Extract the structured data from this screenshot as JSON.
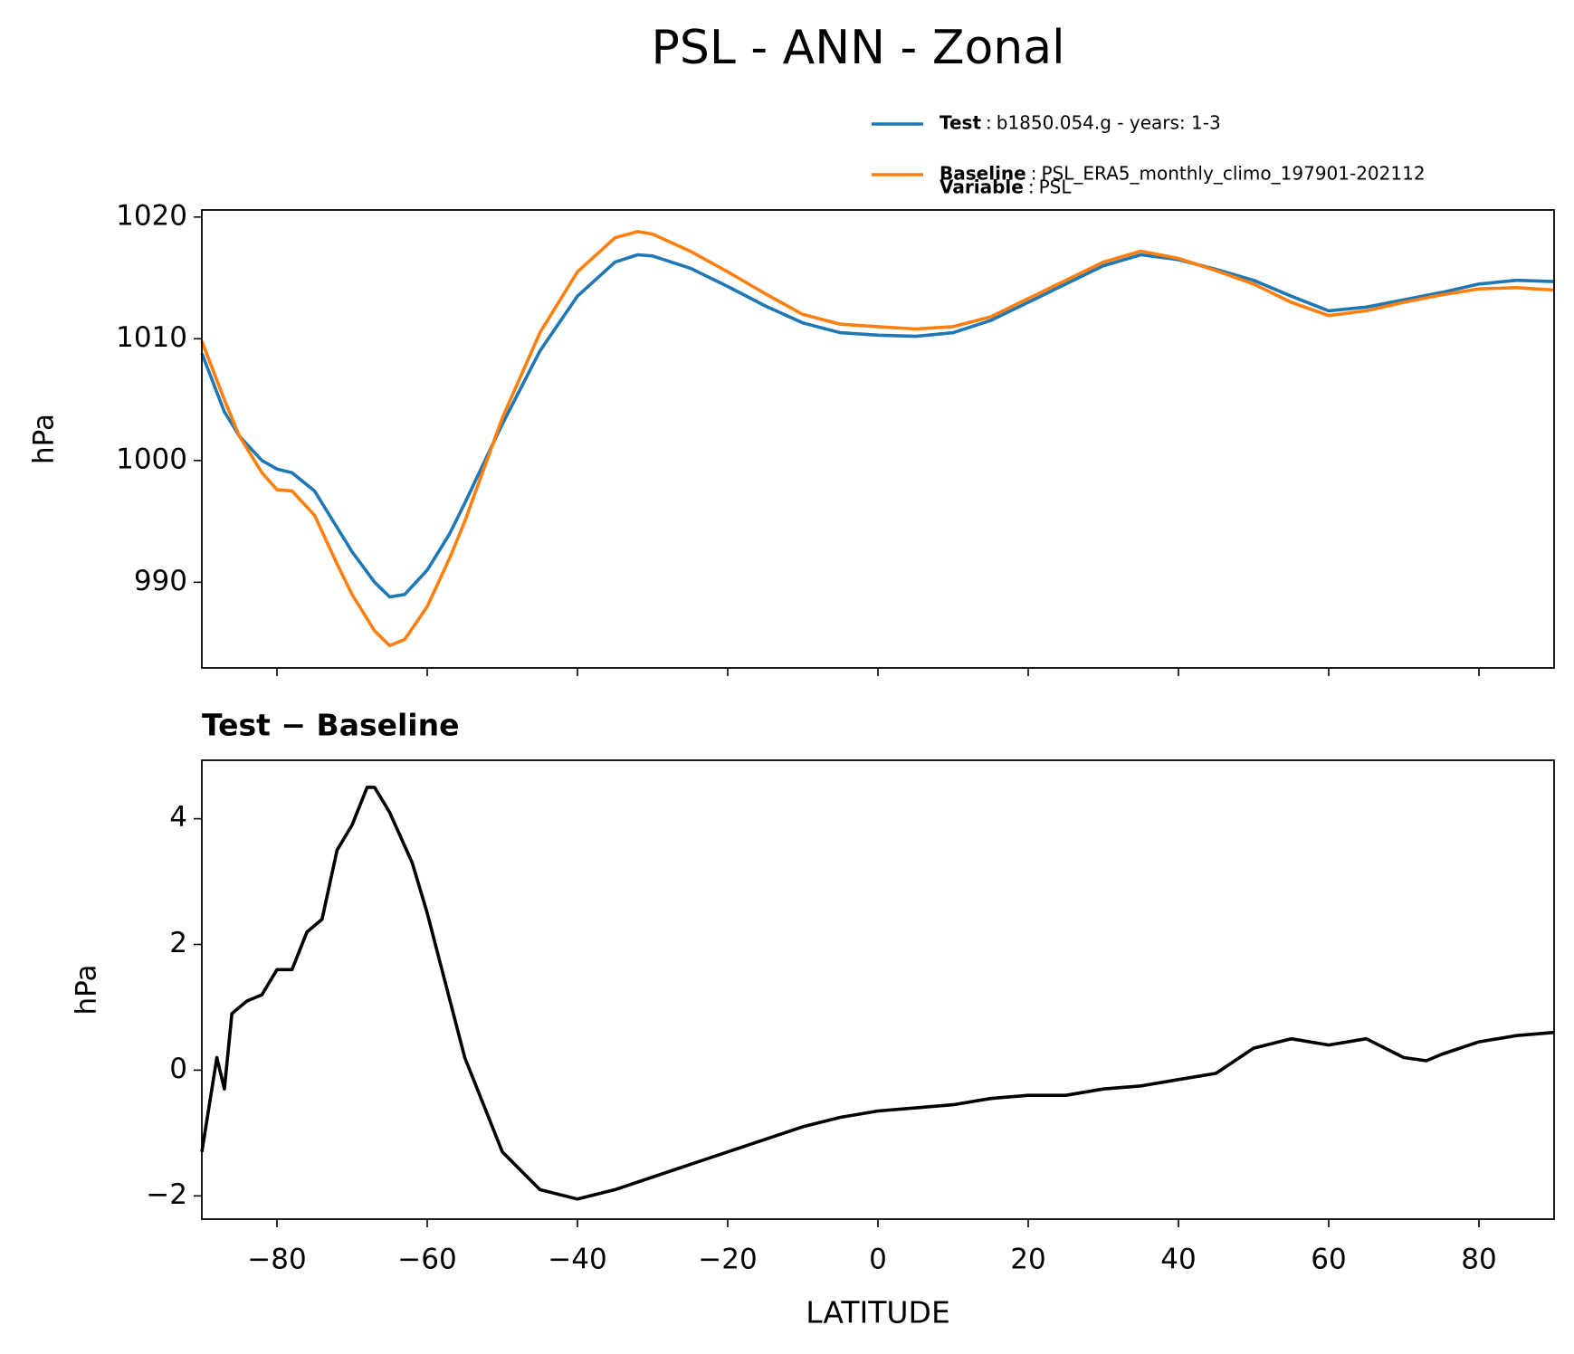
{
  "title": "PSL - ANN - Zonal",
  "chart_data": [
    {
      "type": "line",
      "ylabel": "hPa",
      "legend_separator": ":",
      "variable_label": "Variable",
      "variable": "PSL",
      "x": [
        -90,
        -87,
        -85,
        -82,
        -80,
        -78,
        -75,
        -72,
        -70,
        -67,
        -65,
        -63,
        -60,
        -57,
        -55,
        -50,
        -45,
        -40,
        -35,
        -32,
        -30,
        -25,
        -20,
        -15,
        -10,
        -5,
        0,
        5,
        10,
        15,
        20,
        25,
        30,
        35,
        40,
        45,
        50,
        55,
        60,
        65,
        70,
        75,
        80,
        85,
        90
      ],
      "series": [
        {
          "name": "Test",
          "description": "b1850.054.g - years: 1-3",
          "color": "#1f77b4",
          "values": [
            1008.8,
            1004,
            1002,
            1000,
            999.3,
            999,
            997.5,
            994.5,
            992.5,
            990,
            988.8,
            989,
            991,
            994,
            996.5,
            1003,
            1009,
            1013.5,
            1016.3,
            1016.9,
            1016.8,
            1015.8,
            1014.3,
            1012.7,
            1011.3,
            1010.5,
            1010.3,
            1010.2,
            1010.5,
            1011.5,
            1013,
            1014.5,
            1016,
            1016.9,
            1016.5,
            1015.7,
            1014.8,
            1013.5,
            1012.3,
            1012.6,
            1013.2,
            1013.8,
            1014.5,
            1014.8,
            1014.7
          ]
        },
        {
          "name": "Baseline",
          "description": "PSL_ERA5_monthly_climo_197901-202112",
          "color": "#ff7f0e",
          "values": [
            1009.8,
            1005,
            1002,
            999,
            997.6,
            997.5,
            995.5,
            991.5,
            989,
            986,
            984.8,
            985.3,
            988,
            992,
            995,
            1003.5,
            1010.5,
            1015.5,
            1018.3,
            1018.8,
            1018.6,
            1017.2,
            1015.5,
            1013.7,
            1012,
            1011.2,
            1011,
            1010.8,
            1011,
            1011.8,
            1013.3,
            1014.8,
            1016.3,
            1017.2,
            1016.6,
            1015.6,
            1014.5,
            1013,
            1011.9,
            1012.3,
            1013,
            1013.6,
            1014.1,
            1014.2,
            1014
          ]
        }
      ],
      "xlim": [
        -90,
        90
      ],
      "xticks": [
        -80,
        -60,
        -40,
        -20,
        0,
        20,
        40,
        60,
        80
      ],
      "ylim": [
        982.96,
        1020.58
      ],
      "yticks": [
        990,
        1000,
        1010,
        1020
      ]
    },
    {
      "type": "line",
      "title": "Test − Baseline",
      "ylabel": "hPa",
      "xlabel": "LATITUDE",
      "x": [
        -90,
        -88,
        -87,
        -86,
        -84,
        -82,
        -80,
        -78,
        -76,
        -74,
        -72,
        -70,
        -68,
        -67,
        -65,
        -62,
        -60,
        -55,
        -50,
        -45,
        -40,
        -35,
        -30,
        -25,
        -20,
        -15,
        -10,
        -5,
        0,
        5,
        10,
        15,
        20,
        25,
        30,
        35,
        40,
        45,
        50,
        55,
        60,
        65,
        70,
        73,
        75,
        80,
        85,
        90
      ],
      "series": [
        {
          "color": "#000000",
          "values": [
            -1.3,
            0.2,
            -0.3,
            0.9,
            1.1,
            1.2,
            1.6,
            1.6,
            2.2,
            2.4,
            3.5,
            3.9,
            4.5,
            4.5,
            4.1,
            3.3,
            2.5,
            0.2,
            -1.3,
            -1.9,
            -2.05,
            -1.9,
            -1.7,
            -1.5,
            -1.3,
            -1.1,
            -0.9,
            -0.75,
            -0.65,
            -0.6,
            -0.55,
            -0.45,
            -0.4,
            -0.4,
            -0.3,
            -0.25,
            -0.15,
            -0.05,
            0.35,
            0.5,
            0.4,
            0.5,
            0.2,
            0.15,
            0.25,
            0.45,
            0.55,
            0.6
          ]
        }
      ],
      "xlim": [
        -90,
        90
      ],
      "xticks": [
        {
          "value": -80,
          "label": "−80"
        },
        {
          "value": -60,
          "label": "−60"
        },
        {
          "value": -40,
          "label": "−40"
        },
        {
          "value": -20,
          "label": "−20"
        },
        0,
        20,
        40,
        60,
        80
      ],
      "ylim": [
        -2.37,
        4.93
      ],
      "yticks": [
        {
          "value": -2,
          "label": "−2"
        },
        0,
        2,
        4
      ]
    }
  ]
}
